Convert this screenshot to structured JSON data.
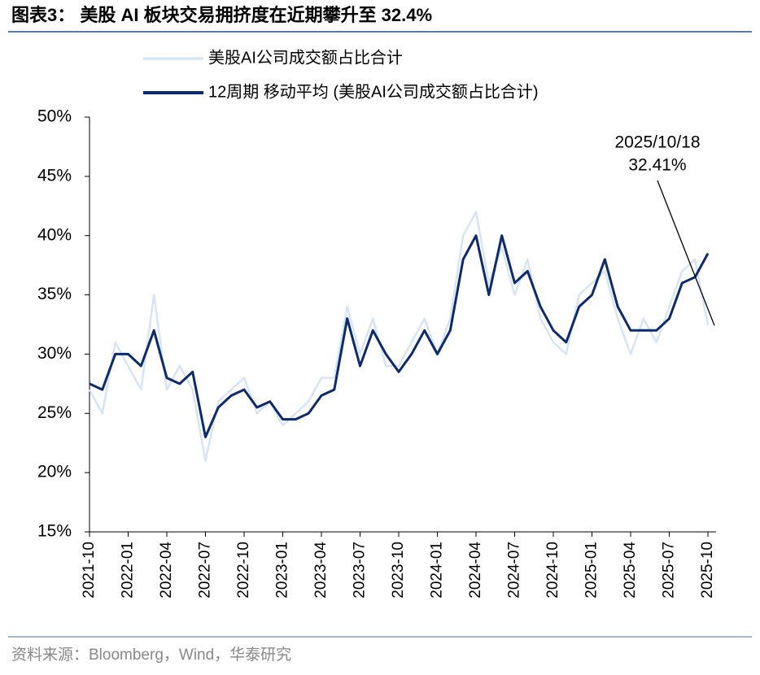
{
  "title": "图表3： 美股 AI 板块交易拥挤度在近期攀升至 32.4%",
  "source": "资料来源：Bloomberg，Wind，华泰研究",
  "chart_data": {
    "type": "line",
    "categories": [
      "2021-10",
      null,
      null,
      "2022-01",
      null,
      null,
      "2022-04",
      null,
      null,
      "2022-07",
      null,
      null,
      "2022-10",
      null,
      null,
      "2023-01",
      null,
      null,
      "2023-04",
      null,
      null,
      "2023-07",
      null,
      null,
      "2023-10",
      null,
      null,
      "2024-01",
      null,
      null,
      "2024-04",
      null,
      null,
      "2024-07",
      null,
      null,
      "2024-10",
      null,
      null,
      "2025-01",
      null,
      null,
      "2025-04",
      null,
      null,
      "2025-07",
      null,
      null,
      "2025-10"
    ],
    "series": [
      {
        "name": "美股AI公司成交额占比合计",
        "color": "#d6e5f5",
        "width": 2.5,
        "values": [
          27,
          25,
          31,
          29,
          27,
          35,
          27,
          29,
          27,
          21,
          26,
          27,
          28,
          25,
          26,
          24,
          25,
          26,
          28,
          28,
          34,
          30,
          33,
          29,
          29,
          31,
          33,
          30,
          33,
          40,
          42,
          36,
          39,
          35,
          38,
          33,
          31,
          30,
          35,
          36,
          37,
          33,
          30,
          33,
          31,
          34,
          37,
          38,
          32.41
        ]
      },
      {
        "name": "12周期 移动平均 (美股AI公司成交额占比合计)",
        "color": "#0d2b6b",
        "width": 3,
        "values": [
          27.5,
          27,
          30,
          30,
          29,
          32,
          28,
          27.5,
          28.5,
          23,
          25.5,
          26.5,
          27,
          25.5,
          26,
          24.5,
          24.5,
          25,
          26.5,
          27,
          33,
          29,
          32,
          30,
          28.5,
          30,
          32,
          30,
          32,
          38,
          40,
          35,
          40,
          36,
          37,
          34,
          32,
          31,
          34,
          35,
          38,
          34,
          32,
          32,
          32,
          33,
          36,
          36.5,
          38.5
        ]
      }
    ],
    "annotation": {
      "date": "2025/10/18",
      "value": 32.41,
      "value_label": "32.41%"
    },
    "ylim": [
      15,
      50
    ],
    "yticks": [
      {
        "value": 15,
        "label": "15%"
      },
      {
        "value": 20,
        "label": "20%"
      },
      {
        "value": 25,
        "label": "25%"
      },
      {
        "value": 30,
        "label": "30%"
      },
      {
        "value": 35,
        "label": "35%"
      },
      {
        "value": 40,
        "label": "40%"
      },
      {
        "value": 45,
        "label": "45%"
      },
      {
        "value": 50,
        "label": "50%"
      }
    ]
  }
}
